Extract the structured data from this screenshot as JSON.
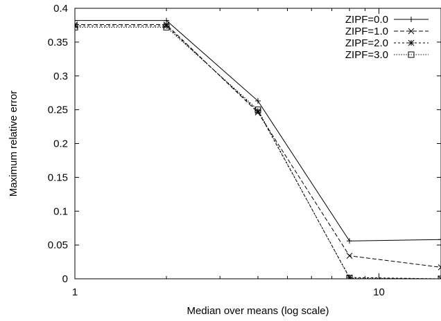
{
  "chart_data": {
    "type": "line",
    "title": "",
    "xlabel": "Median over means (log scale)",
    "ylabel": "Maximum relative error",
    "xscale": "log",
    "xlim": [
      1,
      16
    ],
    "ylim": [
      0,
      0.4
    ],
    "x_ticks": [
      1,
      10
    ],
    "y_ticks": [
      0,
      0.05,
      0.1,
      0.15,
      0.2,
      0.25,
      0.3,
      0.35,
      0.4
    ],
    "y_tick_labels": [
      "0",
      "0.05",
      "0.1",
      "0.15",
      "0.2",
      "0.25",
      "0.3",
      "0.35",
      "0.4"
    ],
    "x_tick_labels": [
      "1",
      "10"
    ],
    "grid": false,
    "legend_position": "top-right",
    "x": [
      1,
      2,
      4,
      8,
      16
    ],
    "series": [
      {
        "name": "ZIPF=0.0",
        "values": [
          0.382,
          0.382,
          0.263,
          0.056,
          0.058
        ],
        "dash": "solid",
        "marker": "plus"
      },
      {
        "name": "ZIPF=1.0",
        "values": [
          0.376,
          0.376,
          0.246,
          0.034,
          0.017
        ],
        "dash": "dashed",
        "marker": "cross"
      },
      {
        "name": "ZIPF=2.0",
        "values": [
          0.374,
          0.374,
          0.248,
          0.002,
          0.0
        ],
        "dash": "short-dash",
        "marker": "star"
      },
      {
        "name": "ZIPF=3.0",
        "values": [
          0.372,
          0.372,
          0.25,
          0.001,
          0.0
        ],
        "dash": "dotted",
        "marker": "square"
      }
    ]
  }
}
